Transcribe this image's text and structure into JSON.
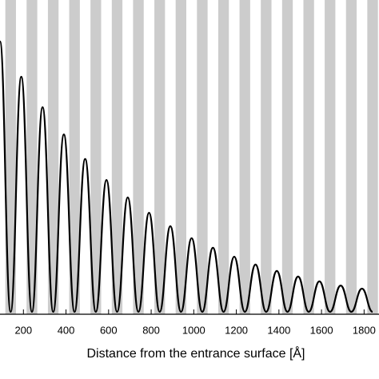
{
  "chart_data": {
    "type": "line",
    "x_label": "Distance from the entrance surface  [Å]",
    "x": [
      90,
      140,
      190,
      240,
      290,
      340,
      390,
      440,
      490,
      540,
      590,
      640,
      690,
      740,
      790,
      840,
      890,
      940,
      990,
      1040,
      1090,
      1140,
      1190,
      1240,
      1290,
      1340,
      1390,
      1440,
      1490,
      1540,
      1590,
      1640,
      1690,
      1740,
      1790,
      1840
    ],
    "values": [
      0.966,
      0,
      0.84,
      0,
      0.731,
      0,
      0.634,
      0,
      0.546,
      0,
      0.471,
      0,
      0.409,
      0,
      0.354,
      0,
      0.306,
      0,
      0.263,
      0,
      0.229,
      0,
      0.197,
      0,
      0.169,
      0,
      0.146,
      0,
      0.126,
      0,
      0.109,
      0,
      0.094,
      0,
      0.083,
      0
    ],
    "color": "#000000",
    "stripe_color": "#cccccc",
    "xlim": [
      90,
      1870
    ],
    "xticks": [
      200,
      400,
      600,
      800,
      1000,
      1200,
      1400,
      1600,
      1800
    ],
    "ylim": [
      0,
      1
    ]
  }
}
